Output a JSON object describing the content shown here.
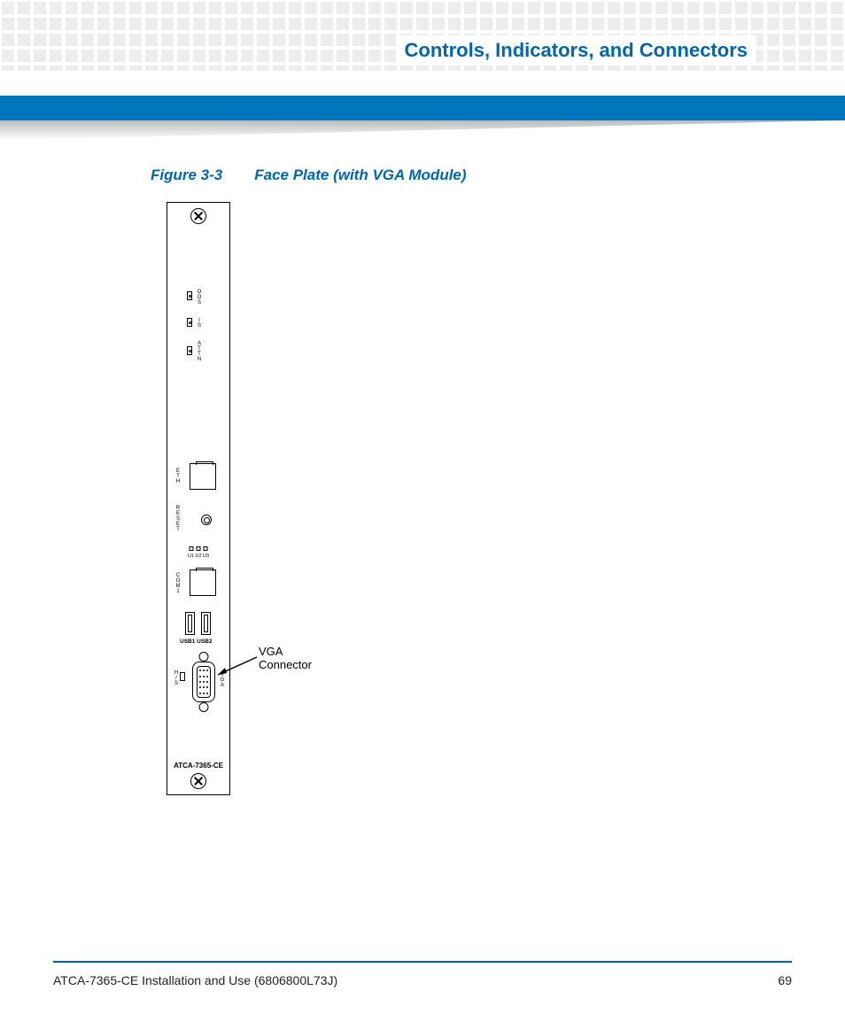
{
  "header": {
    "chapter_title": "Controls, Indicators, and Connectors",
    "title_color": "#0067ac",
    "bar_color": "#0077bd",
    "dot_color": "#eceded"
  },
  "figure": {
    "number": "Figure 3-3",
    "title": "Face Plate (with VGA Module)",
    "caption_color": "#0067ac"
  },
  "faceplate": {
    "leds_top": [
      {
        "label": "OOS"
      },
      {
        "label": "IS"
      },
      {
        "label": "ATTN"
      }
    ],
    "eth_label": "ETH",
    "reset_label": "RESET",
    "u_labels": "U1 U2 U3",
    "com_label": "COM1",
    "usb_labels": "USB1 USB2",
    "hs_label": "H/S",
    "vga_label": "VGA",
    "model": "ATCA-7365-CE"
  },
  "callout": {
    "text_line1": "VGA",
    "text_line2": "Connector"
  },
  "footer": {
    "doc_title": "ATCA-7365-CE Installation and Use (6806800L73J)",
    "page_number": "69",
    "rule_color": "#0067ac"
  }
}
